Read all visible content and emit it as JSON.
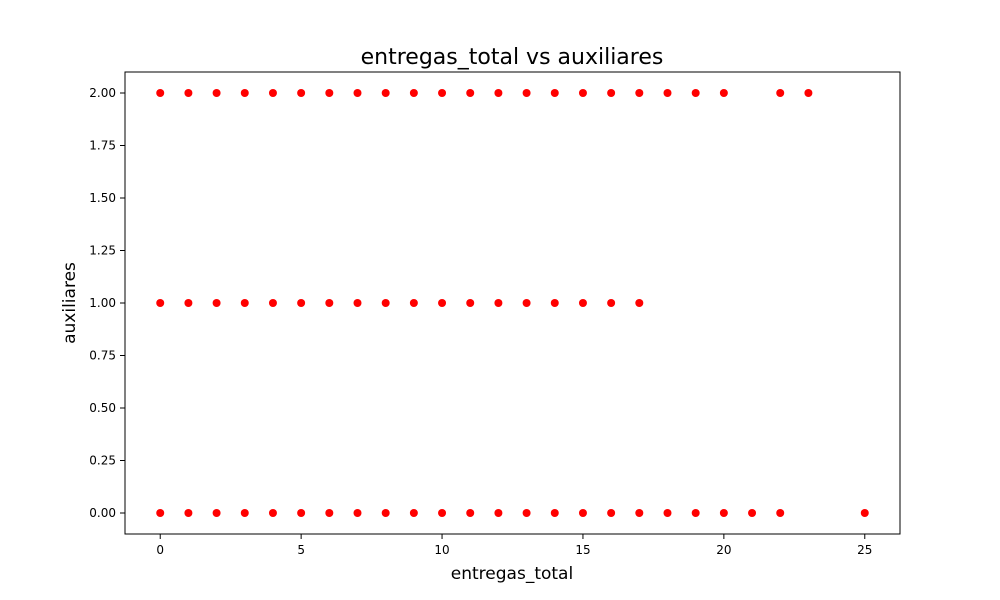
{
  "chart_data": {
    "type": "scatter",
    "title": "entregas_total vs auxiliares",
    "xlabel": "entregas_total",
    "ylabel": "auxiliares",
    "xlim": [
      -1.25,
      26.25
    ],
    "ylim": [
      -0.1,
      2.1
    ],
    "x_ticks": [
      0,
      5,
      10,
      15,
      20,
      25
    ],
    "x_tick_labels": [
      "0",
      "5",
      "10",
      "15",
      "20",
      "25"
    ],
    "y_ticks": [
      0,
      0.25,
      0.5,
      0.75,
      1,
      1.25,
      1.5,
      1.75,
      2
    ],
    "y_tick_labels": [
      "0.00",
      "0.25",
      "0.50",
      "0.75",
      "1.00",
      "1.25",
      "1.50",
      "1.75",
      "2.00"
    ],
    "grid": false,
    "marker_color": "#ff0000",
    "points": [
      [
        0,
        2
      ],
      [
        1,
        2
      ],
      [
        2,
        2
      ],
      [
        3,
        2
      ],
      [
        4,
        2
      ],
      [
        5,
        2
      ],
      [
        6,
        2
      ],
      [
        7,
        2
      ],
      [
        8,
        2
      ],
      [
        9,
        2
      ],
      [
        10,
        2
      ],
      [
        11,
        2
      ],
      [
        12,
        2
      ],
      [
        13,
        2
      ],
      [
        14,
        2
      ],
      [
        15,
        2
      ],
      [
        16,
        2
      ],
      [
        17,
        2
      ],
      [
        18,
        2
      ],
      [
        19,
        2
      ],
      [
        20,
        2
      ],
      [
        22,
        2
      ],
      [
        23,
        2
      ],
      [
        0,
        1
      ],
      [
        1,
        1
      ],
      [
        2,
        1
      ],
      [
        3,
        1
      ],
      [
        4,
        1
      ],
      [
        5,
        1
      ],
      [
        6,
        1
      ],
      [
        7,
        1
      ],
      [
        8,
        1
      ],
      [
        9,
        1
      ],
      [
        10,
        1
      ],
      [
        11,
        1
      ],
      [
        12,
        1
      ],
      [
        13,
        1
      ],
      [
        14,
        1
      ],
      [
        15,
        1
      ],
      [
        16,
        1
      ],
      [
        17,
        1
      ],
      [
        0,
        0
      ],
      [
        1,
        0
      ],
      [
        2,
        0
      ],
      [
        3,
        0
      ],
      [
        4,
        0
      ],
      [
        5,
        0
      ],
      [
        6,
        0
      ],
      [
        7,
        0
      ],
      [
        8,
        0
      ],
      [
        9,
        0
      ],
      [
        10,
        0
      ],
      [
        11,
        0
      ],
      [
        12,
        0
      ],
      [
        13,
        0
      ],
      [
        14,
        0
      ],
      [
        15,
        0
      ],
      [
        16,
        0
      ],
      [
        17,
        0
      ],
      [
        18,
        0
      ],
      [
        19,
        0
      ],
      [
        20,
        0
      ],
      [
        21,
        0
      ],
      [
        22,
        0
      ],
      [
        25,
        0
      ]
    ]
  }
}
